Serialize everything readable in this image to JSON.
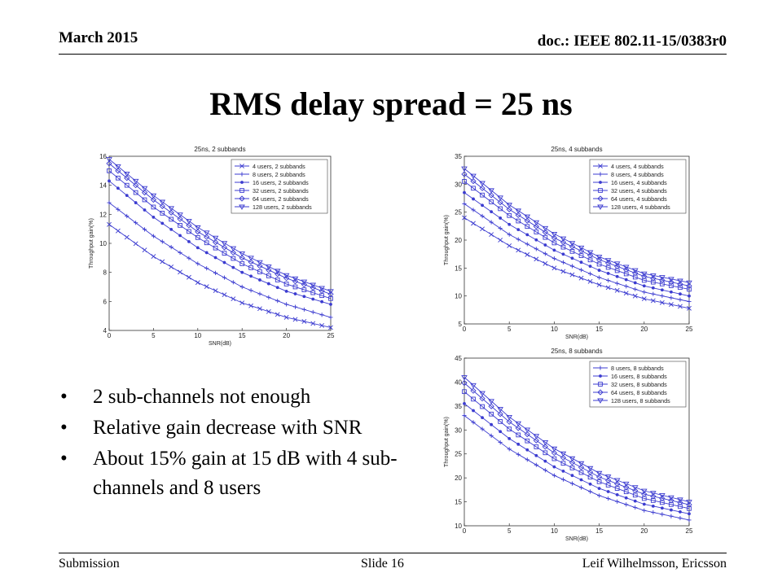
{
  "header": {
    "date": "March 2015",
    "doc": "doc.: IEEE 802.11-15/0383r0"
  },
  "title": "RMS delay spread = 25 ns",
  "bullets": [
    "2 sub-channels not enough",
    "Relative gain decrease with SNR",
    "About 15% gain at 15 dB with 4 sub-channels and 8 users"
  ],
  "footer": {
    "left": "Submission",
    "center": "Slide 16",
    "right": "Leif Wilhelmsson,  Ericsson"
  },
  "colors": {
    "series": "#3b3bd0",
    "axis": "#000000",
    "grid_background": "#ffffff"
  },
  "chart_data": [
    {
      "type": "line",
      "title": "25ns, 2 subbands",
      "xlabel": "SNR(dB)",
      "ylabel": "Throughput gain(%)",
      "xlim": [
        0,
        25
      ],
      "ylim": [
        4,
        16
      ],
      "xticks": [
        0,
        5,
        10,
        15,
        20,
        25
      ],
      "yticks": [
        4,
        6,
        8,
        10,
        12,
        14,
        16
      ],
      "legend": "top-right",
      "x": [
        0,
        5,
        10,
        15,
        20,
        25
      ],
      "series": [
        {
          "name": "4 users, 2 subbands",
          "marker": "x",
          "values": [
            11.3,
            9.1,
            7.3,
            5.9,
            4.9,
            4.2
          ]
        },
        {
          "name": "8 users, 2 subbands",
          "marker": "+",
          "values": [
            12.8,
            10.5,
            8.6,
            7.0,
            5.8,
            4.9
          ]
        },
        {
          "name": "16 users, 2 subbands",
          "marker": "dot",
          "values": [
            14.3,
            11.8,
            9.7,
            8.0,
            6.7,
            5.8
          ]
        },
        {
          "name": "32 users, 2 subbands",
          "marker": "square",
          "values": [
            15.0,
            12.5,
            10.4,
            8.6,
            7.2,
            6.2
          ]
        },
        {
          "name": "64 users, 2 subbands",
          "marker": "diamond",
          "values": [
            15.5,
            13.0,
            10.8,
            9.0,
            7.6,
            6.5
          ]
        },
        {
          "name": "128 users, 2 subbands",
          "marker": "triangle",
          "values": [
            15.8,
            13.3,
            11.1,
            9.3,
            7.8,
            6.7
          ]
        }
      ]
    },
    {
      "type": "line",
      "title": "25ns, 4 subbands",
      "xlabel": "SNR(dB)",
      "ylabel": "Throughput gain(%)",
      "xlim": [
        0,
        25
      ],
      "ylim": [
        5,
        35
      ],
      "xticks": [
        0,
        5,
        10,
        15,
        20,
        25
      ],
      "yticks": [
        5,
        10,
        15,
        20,
        25,
        30,
        35
      ],
      "legend": "top-right",
      "x": [
        0,
        5,
        10,
        15,
        20,
        25
      ],
      "series": [
        {
          "name": "4 users, 4 subbands",
          "marker": "x",
          "values": [
            24.0,
            19.0,
            15.0,
            12.0,
            9.5,
            7.8
          ]
        },
        {
          "name": "8 users, 4 subbands",
          "marker": "+",
          "values": [
            26.5,
            21.0,
            16.7,
            13.3,
            10.7,
            9.0
          ]
        },
        {
          "name": "16 users, 4 subbands",
          "marker": "dot",
          "values": [
            28.5,
            22.8,
            18.2,
            14.6,
            11.8,
            10.0
          ]
        },
        {
          "name": "32 users, 4 subbands",
          "marker": "square",
          "values": [
            30.5,
            24.4,
            19.5,
            15.7,
            12.8,
            11.2
          ]
        },
        {
          "name": "64 users, 4 subbands",
          "marker": "diamond",
          "values": [
            31.8,
            25.5,
            20.4,
            16.5,
            13.5,
            11.8
          ]
        },
        {
          "name": "128 users, 4 subbands",
          "marker": "triangle",
          "values": [
            32.8,
            26.3,
            21.1,
            17.0,
            14.0,
            12.4
          ]
        }
      ]
    },
    {
      "type": "line",
      "title": "25ns, 8 subbands",
      "xlabel": "SNR(dB)",
      "ylabel": "Throughput gain(%)",
      "xlim": [
        0,
        25
      ],
      "ylim": [
        10,
        45
      ],
      "xticks": [
        0,
        5,
        10,
        15,
        20,
        25
      ],
      "yticks": [
        10,
        15,
        20,
        25,
        30,
        35,
        40,
        45
      ],
      "legend": "top-right",
      "x": [
        0,
        5,
        10,
        15,
        20,
        25
      ],
      "series": [
        {
          "name": "8 users, 8 subbands",
          "marker": "+",
          "values": [
            33.0,
            26.0,
            20.5,
            16.3,
            13.2,
            11.2
          ]
        },
        {
          "name": "16 users, 8 subbands",
          "marker": "dot",
          "values": [
            35.5,
            28.2,
            22.3,
            17.8,
            14.5,
            12.5
          ]
        },
        {
          "name": "32 users, 8 subbands",
          "marker": "square",
          "values": [
            38.0,
            30.2,
            24.0,
            19.2,
            15.7,
            13.6
          ]
        },
        {
          "name": "64 users, 8 subbands",
          "marker": "diamond",
          "values": [
            39.8,
            31.7,
            25.2,
            20.2,
            16.6,
            14.4
          ]
        },
        {
          "name": "128 users, 8 subbands",
          "marker": "triangle",
          "values": [
            41.0,
            32.7,
            26.1,
            21.0,
            17.3,
            15.0
          ]
        }
      ]
    }
  ]
}
